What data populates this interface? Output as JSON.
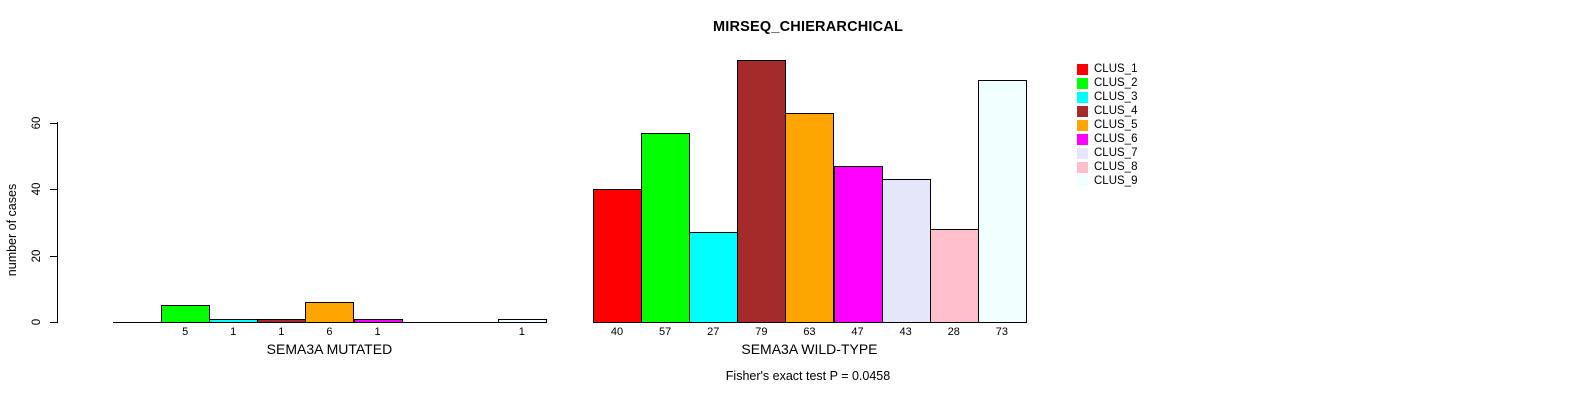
{
  "chart_data": {
    "type": "bar",
    "title": "MIRSEQ_CHIERARCHICAL",
    "ylabel": "number of cases",
    "categories": [
      "SEMA3A MUTATED",
      "SEMA3A WILD-TYPE"
    ],
    "yticks": [
      0,
      20,
      40,
      60
    ],
    "ylim": [
      0,
      84
    ],
    "grid": false,
    "legend_position": "right",
    "annotation": "Fisher's exact test P = 0.0458",
    "series": [
      {
        "name": "CLUS_1",
        "color": "#FF0000",
        "values": [
          0,
          40
        ]
      },
      {
        "name": "CLUS_2",
        "color": "#00FF00",
        "values": [
          5,
          57
        ]
      },
      {
        "name": "CLUS_3",
        "color": "#00FFFF",
        "values": [
          1,
          27
        ]
      },
      {
        "name": "CLUS_4",
        "color": "#A52A2A",
        "values": [
          1,
          79
        ]
      },
      {
        "name": "CLUS_5",
        "color": "#FFA500",
        "values": [
          6,
          63
        ]
      },
      {
        "name": "CLUS_6",
        "color": "#FF00FF",
        "values": [
          1,
          47
        ]
      },
      {
        "name": "CLUS_7",
        "color": "#E6E6FA",
        "values": [
          0,
          43
        ]
      },
      {
        "name": "CLUS_8",
        "color": "#FFC0CB",
        "values": [
          0,
          28
        ]
      },
      {
        "name": "CLUS_9",
        "color": "#F0FFFF",
        "values": [
          1,
          73
        ]
      }
    ],
    "bar_outline_color": "#000000",
    "background_color": "#FFFFFF"
  }
}
